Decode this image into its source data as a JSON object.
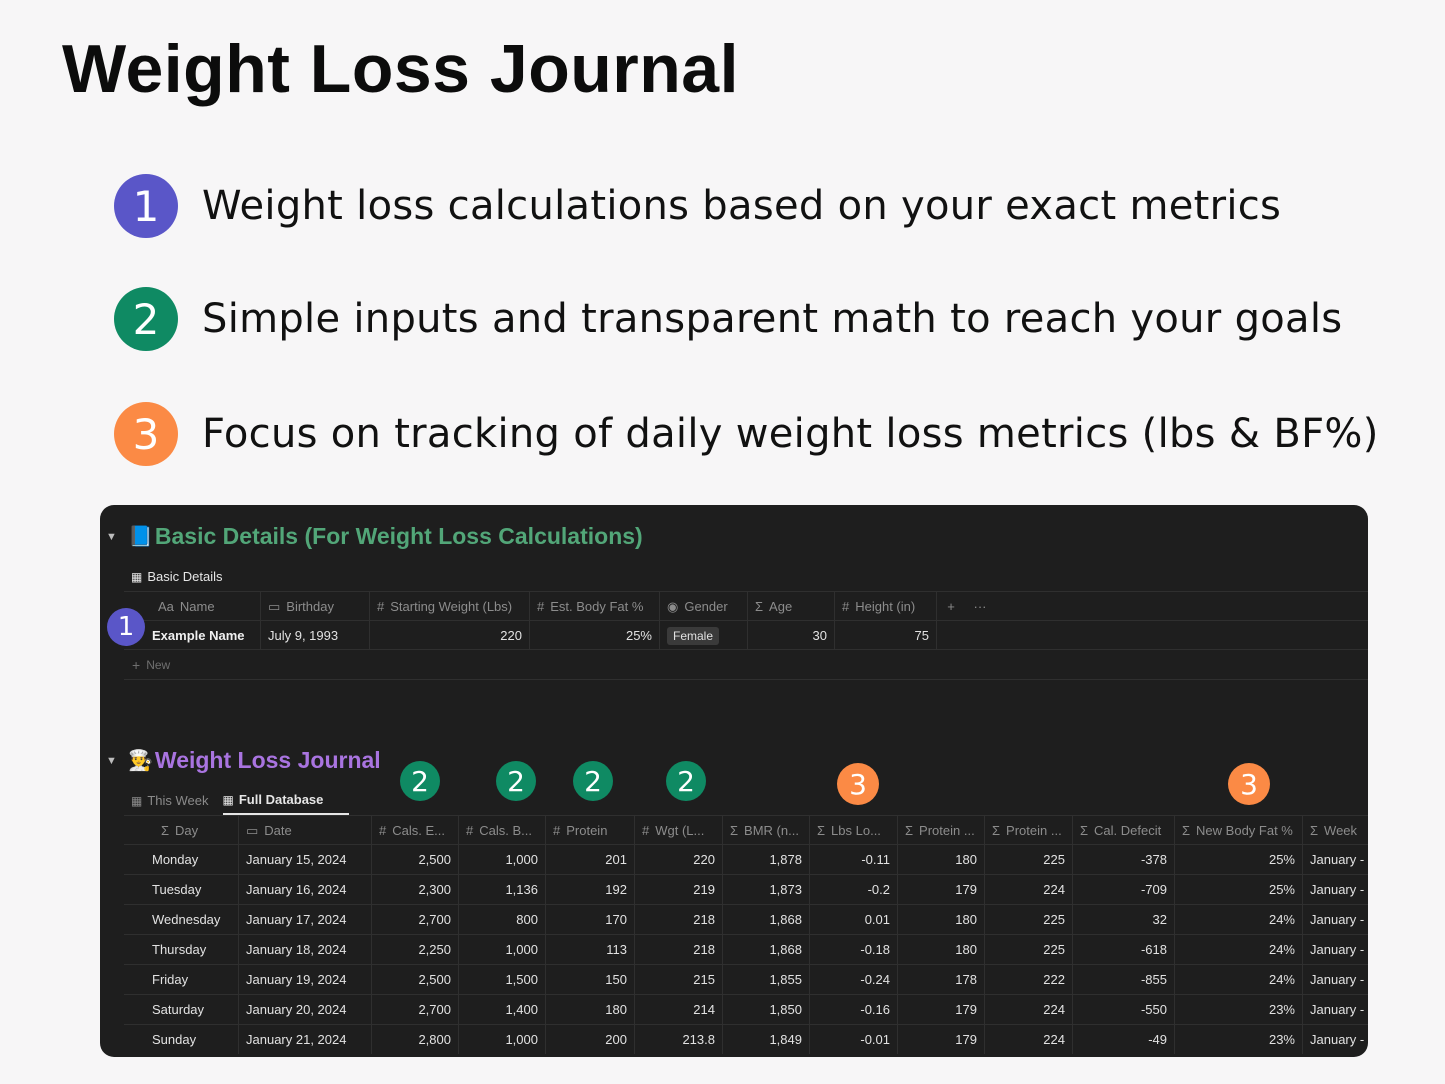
{
  "title": "Weight Loss Journal",
  "features": [
    {
      "number": "1",
      "text": "Weight loss calculations based on your exact metrics",
      "color": "#5a56c8"
    },
    {
      "number": "2",
      "text": "Simple inputs and transparent math to reach your goals",
      "color": "#0f8a63"
    },
    {
      "number": "3",
      "text": "Focus on tracking of daily weight loss metrics (lbs & BF%)",
      "color": "#fb8a45"
    }
  ],
  "basic_details": {
    "section_icon": "blue-book-emoji",
    "section_title": "Basic Details (For Weight Loss Calculations)",
    "title_color": "#52a678",
    "view_name": "Basic Details",
    "columns": [
      {
        "icon": "Aa",
        "label": "Name"
      },
      {
        "icon": "▭",
        "label": "Birthday"
      },
      {
        "icon": "#",
        "label": "Starting Weight (Lbs)"
      },
      {
        "icon": "#",
        "label": "Est. Body Fat %"
      },
      {
        "icon": "◉",
        "label": "Gender"
      },
      {
        "icon": "Σ",
        "label": "Age"
      },
      {
        "icon": "#",
        "label": "Height (in)"
      }
    ],
    "add_column": "+",
    "more": "···",
    "row": {
      "name": "Example Name",
      "birthday": "July 9, 1993",
      "starting_weight": "220",
      "body_fat": "25%",
      "gender": "Female",
      "age": "30",
      "height": "75"
    },
    "new_label": "New",
    "new_icon": "+",
    "badge": "1"
  },
  "journal": {
    "section_icon": "chef-emoji",
    "section_title": "Weight Loss Journal",
    "title_color": "#a974e0",
    "tabs": [
      {
        "label": "This Week",
        "active": false
      },
      {
        "label": "Full Database",
        "active": true
      }
    ],
    "columns": [
      {
        "icon": "Σ",
        "label": "Day"
      },
      {
        "icon": "▭",
        "label": "Date"
      },
      {
        "icon": "#",
        "label": "Cals. E..."
      },
      {
        "icon": "#",
        "label": "Cals. B..."
      },
      {
        "icon": "#",
        "label": "Protein"
      },
      {
        "icon": "#",
        "label": "Wgt (L..."
      },
      {
        "icon": "Σ",
        "label": "BMR (n..."
      },
      {
        "icon": "Σ",
        "label": "Lbs Lo..."
      },
      {
        "icon": "Σ",
        "label": "Protein ..."
      },
      {
        "icon": "Σ",
        "label": "Protein ..."
      },
      {
        "icon": "Σ",
        "label": "Cal. Defecit"
      },
      {
        "icon": "Σ",
        "label": "New Body Fat %"
      },
      {
        "icon": "Σ",
        "label": "Week"
      }
    ],
    "rows": [
      [
        "Monday",
        "January 15, 2024",
        "2,500",
        "1,000",
        "201",
        "220",
        "1,878",
        "-0.11",
        "180",
        "225",
        "-378",
        "25%",
        "January -"
      ],
      [
        "Tuesday",
        "January 16, 2024",
        "2,300",
        "1,136",
        "192",
        "219",
        "1,873",
        "-0.2",
        "179",
        "224",
        "-709",
        "25%",
        "January -"
      ],
      [
        "Wednesday",
        "January 17, 2024",
        "2,700",
        "800",
        "170",
        "218",
        "1,868",
        "0.01",
        "180",
        "225",
        "32",
        "24%",
        "January -"
      ],
      [
        "Thursday",
        "January 18, 2024",
        "2,250",
        "1,000",
        "113",
        "218",
        "1,868",
        "-0.18",
        "180",
        "225",
        "-618",
        "24%",
        "January -"
      ],
      [
        "Friday",
        "January 19, 2024",
        "2,500",
        "1,500",
        "150",
        "215",
        "1,855",
        "-0.24",
        "178",
        "222",
        "-855",
        "24%",
        "January -"
      ],
      [
        "Saturday",
        "January 20, 2024",
        "2,700",
        "1,400",
        "180",
        "214",
        "1,850",
        "-0.16",
        "179",
        "224",
        "-550",
        "23%",
        "January -"
      ],
      [
        "Sunday",
        "January 21, 2024",
        "2,800",
        "1,000",
        "200",
        "213.8",
        "1,849",
        "-0.01",
        "179",
        "224",
        "-49",
        "23%",
        "January -"
      ]
    ],
    "badges": [
      "2",
      "2",
      "2",
      "2",
      "3",
      "3"
    ]
  }
}
